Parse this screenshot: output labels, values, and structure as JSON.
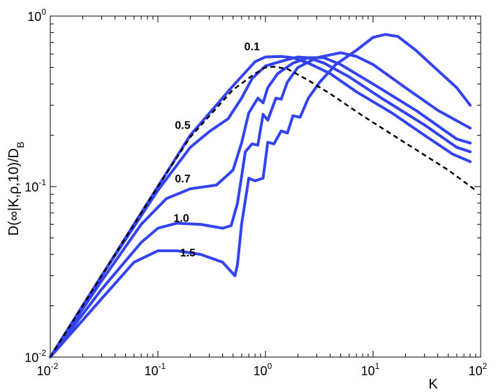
{
  "chart_data": {
    "type": "line",
    "title": "",
    "xlabel": "K",
    "ylabel": "D(∞|K,ρ,10)/D_B",
    "x_scale": "log",
    "y_scale": "log",
    "xlim": [
      0.01,
      100
    ],
    "ylim": [
      0.01,
      1
    ],
    "grid": false,
    "legend": "none",
    "x_ticks": [
      {
        "base": "10",
        "exp": "-2",
        "value": 0.01
      },
      {
        "base": "10",
        "exp": "-1",
        "value": 0.1
      },
      {
        "base": "10",
        "exp": "0",
        "value": 1
      },
      {
        "base": "10",
        "exp": "1",
        "value": 10
      },
      {
        "base": "10",
        "exp": "2",
        "value": 100
      }
    ],
    "y_ticks": [
      {
        "base": "10",
        "exp": "-2",
        "value": 0.01
      },
      {
        "base": "10",
        "exp": "-1",
        "value": 0.1
      },
      {
        "base": "10",
        "exp": "0",
        "value": 1
      }
    ],
    "series_color": "#3344ee",
    "reference_color": "#000000",
    "series": [
      {
        "label": "0.1",
        "label_at": [
          0.75,
          0.63
        ],
        "points": [
          [
            0.01,
            0.01
          ],
          [
            0.02,
            0.02
          ],
          [
            0.05,
            0.05
          ],
          [
            0.1,
            0.1
          ],
          [
            0.2,
            0.2
          ],
          [
            0.5,
            0.39
          ],
          [
            0.8,
            0.54
          ],
          [
            1.0,
            0.575
          ],
          [
            1.4,
            0.58
          ],
          [
            1.8,
            0.57
          ],
          [
            2.5,
            0.53
          ],
          [
            4,
            0.46
          ],
          [
            7,
            0.36
          ],
          [
            15,
            0.27
          ],
          [
            30,
            0.2
          ],
          [
            55,
            0.155
          ],
          [
            80,
            0.14
          ]
        ]
      },
      {
        "label": "0.5",
        "label_at": [
          0.17,
          0.218
        ],
        "points": [
          [
            0.01,
            0.01
          ],
          [
            0.03,
            0.03
          ],
          [
            0.1,
            0.095
          ],
          [
            0.2,
            0.17
          ],
          [
            0.3,
            0.21
          ],
          [
            0.45,
            0.25
          ],
          [
            0.6,
            0.33
          ],
          [
            0.75,
            0.43
          ],
          [
            1.0,
            0.51
          ],
          [
            1.5,
            0.55
          ],
          [
            2.0,
            0.575
          ],
          [
            2.5,
            0.57
          ],
          [
            3.5,
            0.53
          ],
          [
            6,
            0.44
          ],
          [
            12,
            0.33
          ],
          [
            30,
            0.23
          ],
          [
            60,
            0.17
          ],
          [
            80,
            0.16
          ]
        ]
      },
      {
        "label": "0.7",
        "label_at": [
          0.17,
          0.106
        ],
        "points": [
          [
            0.01,
            0.01
          ],
          [
            0.03,
            0.028
          ],
          [
            0.07,
            0.06
          ],
          [
            0.12,
            0.085
          ],
          [
            0.2,
            0.097
          ],
          [
            0.35,
            0.102
          ],
          [
            0.5,
            0.125
          ],
          [
            0.6,
            0.18
          ],
          [
            0.7,
            0.27
          ],
          [
            0.85,
            0.33
          ],
          [
            0.95,
            0.31
          ],
          [
            1.05,
            0.38
          ],
          [
            1.3,
            0.46
          ],
          [
            1.8,
            0.53
          ],
          [
            2.5,
            0.57
          ],
          [
            3.5,
            0.57
          ],
          [
            5,
            0.52
          ],
          [
            10,
            0.4
          ],
          [
            25,
            0.28
          ],
          [
            60,
            0.19
          ],
          [
            80,
            0.18
          ]
        ]
      },
      {
        "label": "1.0",
        "label_at": [
          0.165,
          0.062
        ],
        "points": [
          [
            0.01,
            0.01
          ],
          [
            0.03,
            0.025
          ],
          [
            0.07,
            0.047
          ],
          [
            0.1,
            0.057
          ],
          [
            0.15,
            0.061
          ],
          [
            0.25,
            0.06
          ],
          [
            0.4,
            0.057
          ],
          [
            0.48,
            0.059
          ],
          [
            0.55,
            0.08
          ],
          [
            0.65,
            0.16
          ],
          [
            0.75,
            0.178
          ],
          [
            0.85,
            0.175
          ],
          [
            0.95,
            0.265
          ],
          [
            1.05,
            0.245
          ],
          [
            1.25,
            0.33
          ],
          [
            1.4,
            0.325
          ],
          [
            1.6,
            0.41
          ],
          [
            2.0,
            0.5
          ],
          [
            3,
            0.57
          ],
          [
            5,
            0.61
          ],
          [
            7,
            0.58
          ],
          [
            10,
            0.52
          ],
          [
            20,
            0.38
          ],
          [
            40,
            0.28
          ],
          [
            80,
            0.22
          ]
        ]
      },
      {
        "label": "1.5",
        "label_at": [
          0.19,
          0.039
        ],
        "points": [
          [
            0.01,
            0.01
          ],
          [
            0.03,
            0.022
          ],
          [
            0.06,
            0.036
          ],
          [
            0.1,
            0.042
          ],
          [
            0.15,
            0.042
          ],
          [
            0.25,
            0.04
          ],
          [
            0.4,
            0.036
          ],
          [
            0.52,
            0.03
          ],
          [
            0.55,
            0.035
          ],
          [
            0.6,
            0.06
          ],
          [
            0.7,
            0.112
          ],
          [
            0.8,
            0.108
          ],
          [
            0.95,
            0.112
          ],
          [
            1.05,
            0.182
          ],
          [
            1.2,
            0.178
          ],
          [
            1.4,
            0.212
          ],
          [
            1.6,
            0.206
          ],
          [
            1.8,
            0.26
          ],
          [
            2.1,
            0.255
          ],
          [
            2.5,
            0.33
          ],
          [
            3.2,
            0.41
          ],
          [
            4.5,
            0.52
          ],
          [
            7,
            0.63
          ],
          [
            10,
            0.75
          ],
          [
            13,
            0.78
          ],
          [
            17,
            0.76
          ],
          [
            25,
            0.63
          ],
          [
            40,
            0.48
          ],
          [
            60,
            0.38
          ],
          [
            80,
            0.3
          ]
        ]
      }
    ],
    "reference_curve": {
      "style": "dashed",
      "points": [
        [
          0.01,
          0.01
        ],
        [
          0.03,
          0.03
        ],
        [
          0.1,
          0.1
        ],
        [
          0.2,
          0.195
        ],
        [
          0.5,
          0.37
        ],
        [
          0.8,
          0.46
        ],
        [
          1.0,
          0.5
        ],
        [
          1.2,
          0.505
        ],
        [
          1.6,
          0.49
        ],
        [
          2.5,
          0.42
        ],
        [
          4,
          0.35
        ],
        [
          8,
          0.26
        ],
        [
          20,
          0.18
        ],
        [
          50,
          0.125
        ],
        [
          90,
          0.095
        ]
      ]
    }
  }
}
